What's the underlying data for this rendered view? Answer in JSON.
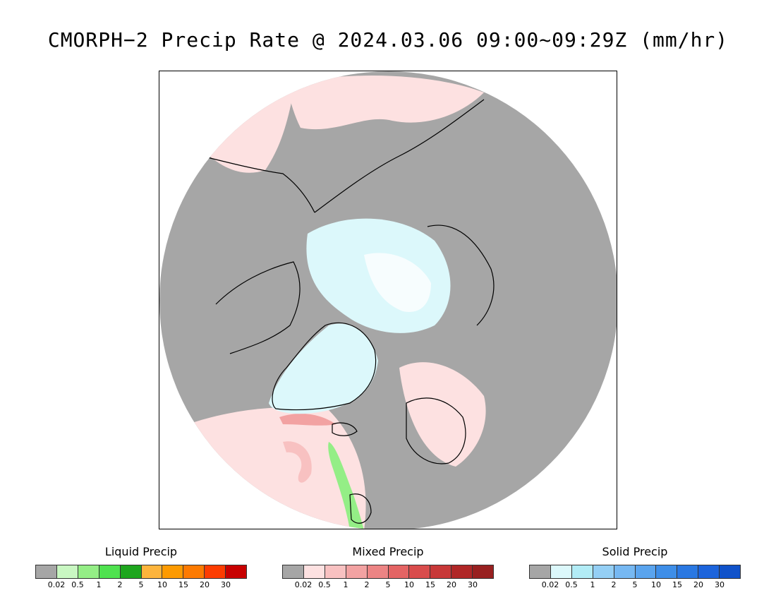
{
  "title": "CMORPH−2 Precip Rate @ 2024.03.06 09:00~09:29Z (mm/hr)",
  "colors": {
    "no_precip": "#a6a6a6",
    "mixed_light": "#fde1e1",
    "solid_light": "#dcf8fb",
    "solid_white": "#f7fdfe",
    "coast": "#000000"
  },
  "legends": [
    {
      "title": "Liquid Precip",
      "colors": [
        "#a6a6a6",
        "#c9f7c2",
        "#94ee86",
        "#4fe24f",
        "#1ea61e",
        "#fdb43c",
        "#fd9a00",
        "#fd7a00",
        "#fd3c00",
        "#c80000"
      ],
      "ticks": [
        "0.02",
        "0.5",
        "1",
        "2",
        "5",
        "10",
        "15",
        "20",
        "30"
      ]
    },
    {
      "title": "Mixed Precip",
      "colors": [
        "#a6a6a6",
        "#fde1e1",
        "#f8c1c1",
        "#f2a2a2",
        "#ec8484",
        "#e46464",
        "#d94c4c",
        "#c83838",
        "#b02626",
        "#982020"
      ],
      "ticks": [
        "0.02",
        "0.5",
        "1",
        "2",
        "5",
        "10",
        "15",
        "20",
        "30"
      ]
    },
    {
      "title": "Solid Precip",
      "colors": [
        "#a6a6a6",
        "#dcf8fb",
        "#b2ecf6",
        "#94cff5",
        "#76b8f2",
        "#5aa4ee",
        "#3e8ee8",
        "#2a78e2",
        "#1c64dc",
        "#1052ca"
      ],
      "ticks": [
        "0.02",
        "0.5",
        "1",
        "2",
        "5",
        "10",
        "15",
        "20",
        "30"
      ]
    }
  ]
}
